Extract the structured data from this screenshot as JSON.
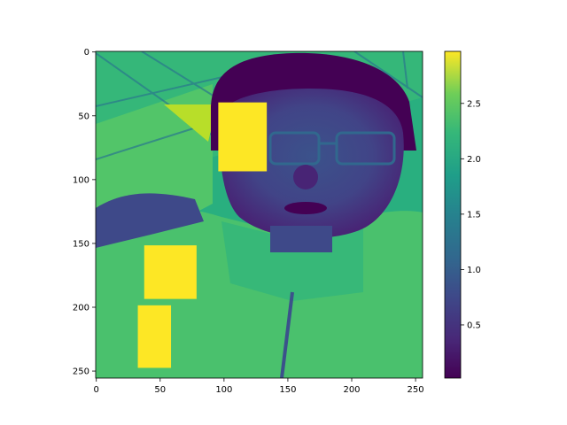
{
  "chart_data": {
    "type": "heatmap",
    "description_kind": "image",
    "title": "",
    "xlabel": "",
    "ylabel": "",
    "xlim": [
      0,
      255
    ],
    "ylim": [
      255,
      0
    ],
    "x_ticks": [
      0,
      50,
      100,
      150,
      200,
      250
    ],
    "y_ticks": [
      0,
      50,
      100,
      150,
      200,
      250
    ],
    "colormap": "viridis",
    "colorbar": {
      "range": [
        0.02,
        2.97
      ],
      "ticks": [
        "0.5",
        "1.0",
        "1.5",
        "2.0",
        "2.5"
      ],
      "tick_values": [
        0.5,
        1.0,
        1.5,
        2.0,
        2.5
      ]
    },
    "occlusion_patches": [
      {
        "x0": 96,
        "x1": 134,
        "y0": 40,
        "y1": 94,
        "value": 2.97
      },
      {
        "x0": 38,
        "x1": 79,
        "y0": 152,
        "y1": 194,
        "value": 2.97
      },
      {
        "x0": 33,
        "x1": 59,
        "y0": 199,
        "y1": 248,
        "value": 2.97
      }
    ],
    "grid": false,
    "legend": "none",
    "colors": {
      "low": "#440154",
      "mid": "#21918c",
      "high": "#fde725"
    }
  }
}
